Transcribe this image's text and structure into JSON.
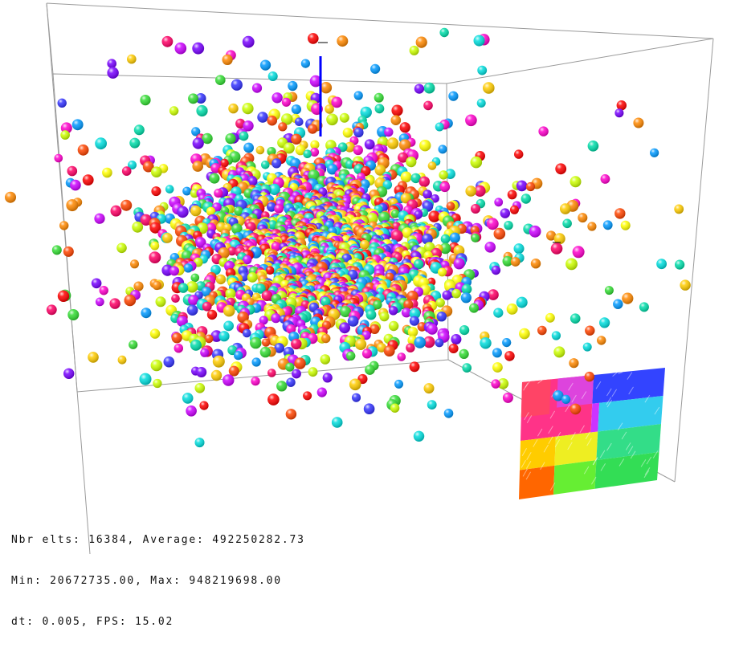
{
  "simulation": {
    "nbr_elts_label": "Nbr elts",
    "nbr_elts_value": "16384",
    "average_label": "Average",
    "average_value": "492250282.73",
    "min_label": "Min",
    "min_value": "20672735.00",
    "max_label": "Max",
    "max_value": "948219698.00",
    "dt_label": "dt",
    "dt_value": "0.005",
    "fps_label": "FPS",
    "fps_value": "15.02"
  },
  "hud": {
    "line1": "Nbr elts: 16384, Average: 492250282.73",
    "line2": "Min: 20672735.00, Max: 948219698.00",
    "line3": "dt: 0.005, FPS: 15.02"
  },
  "colors": {
    "background": "#ffffff",
    "box_edges": "#999999",
    "axis_vertical": "#0000ff",
    "axis_tick": "#000000",
    "particle_palette": [
      "#ff0000",
      "#ff4400",
      "#ff8800",
      "#ffcc00",
      "#ffff00",
      "#ccff00",
      "#33dd33",
      "#00ddaa",
      "#00dddd",
      "#0099ff",
      "#3333ff",
      "#7700ff",
      "#cc00ff",
      "#ff00cc",
      "#ff0066"
    ],
    "palette_map": [
      "#ff3300",
      "#ff9900",
      "#ffee00",
      "#33ee33",
      "#33dddd",
      "#3344ff",
      "#cc33ff",
      "#ff33aa"
    ]
  },
  "icons": {
    "axis": "blue-axis-line",
    "map": "palette-tile-map"
  }
}
